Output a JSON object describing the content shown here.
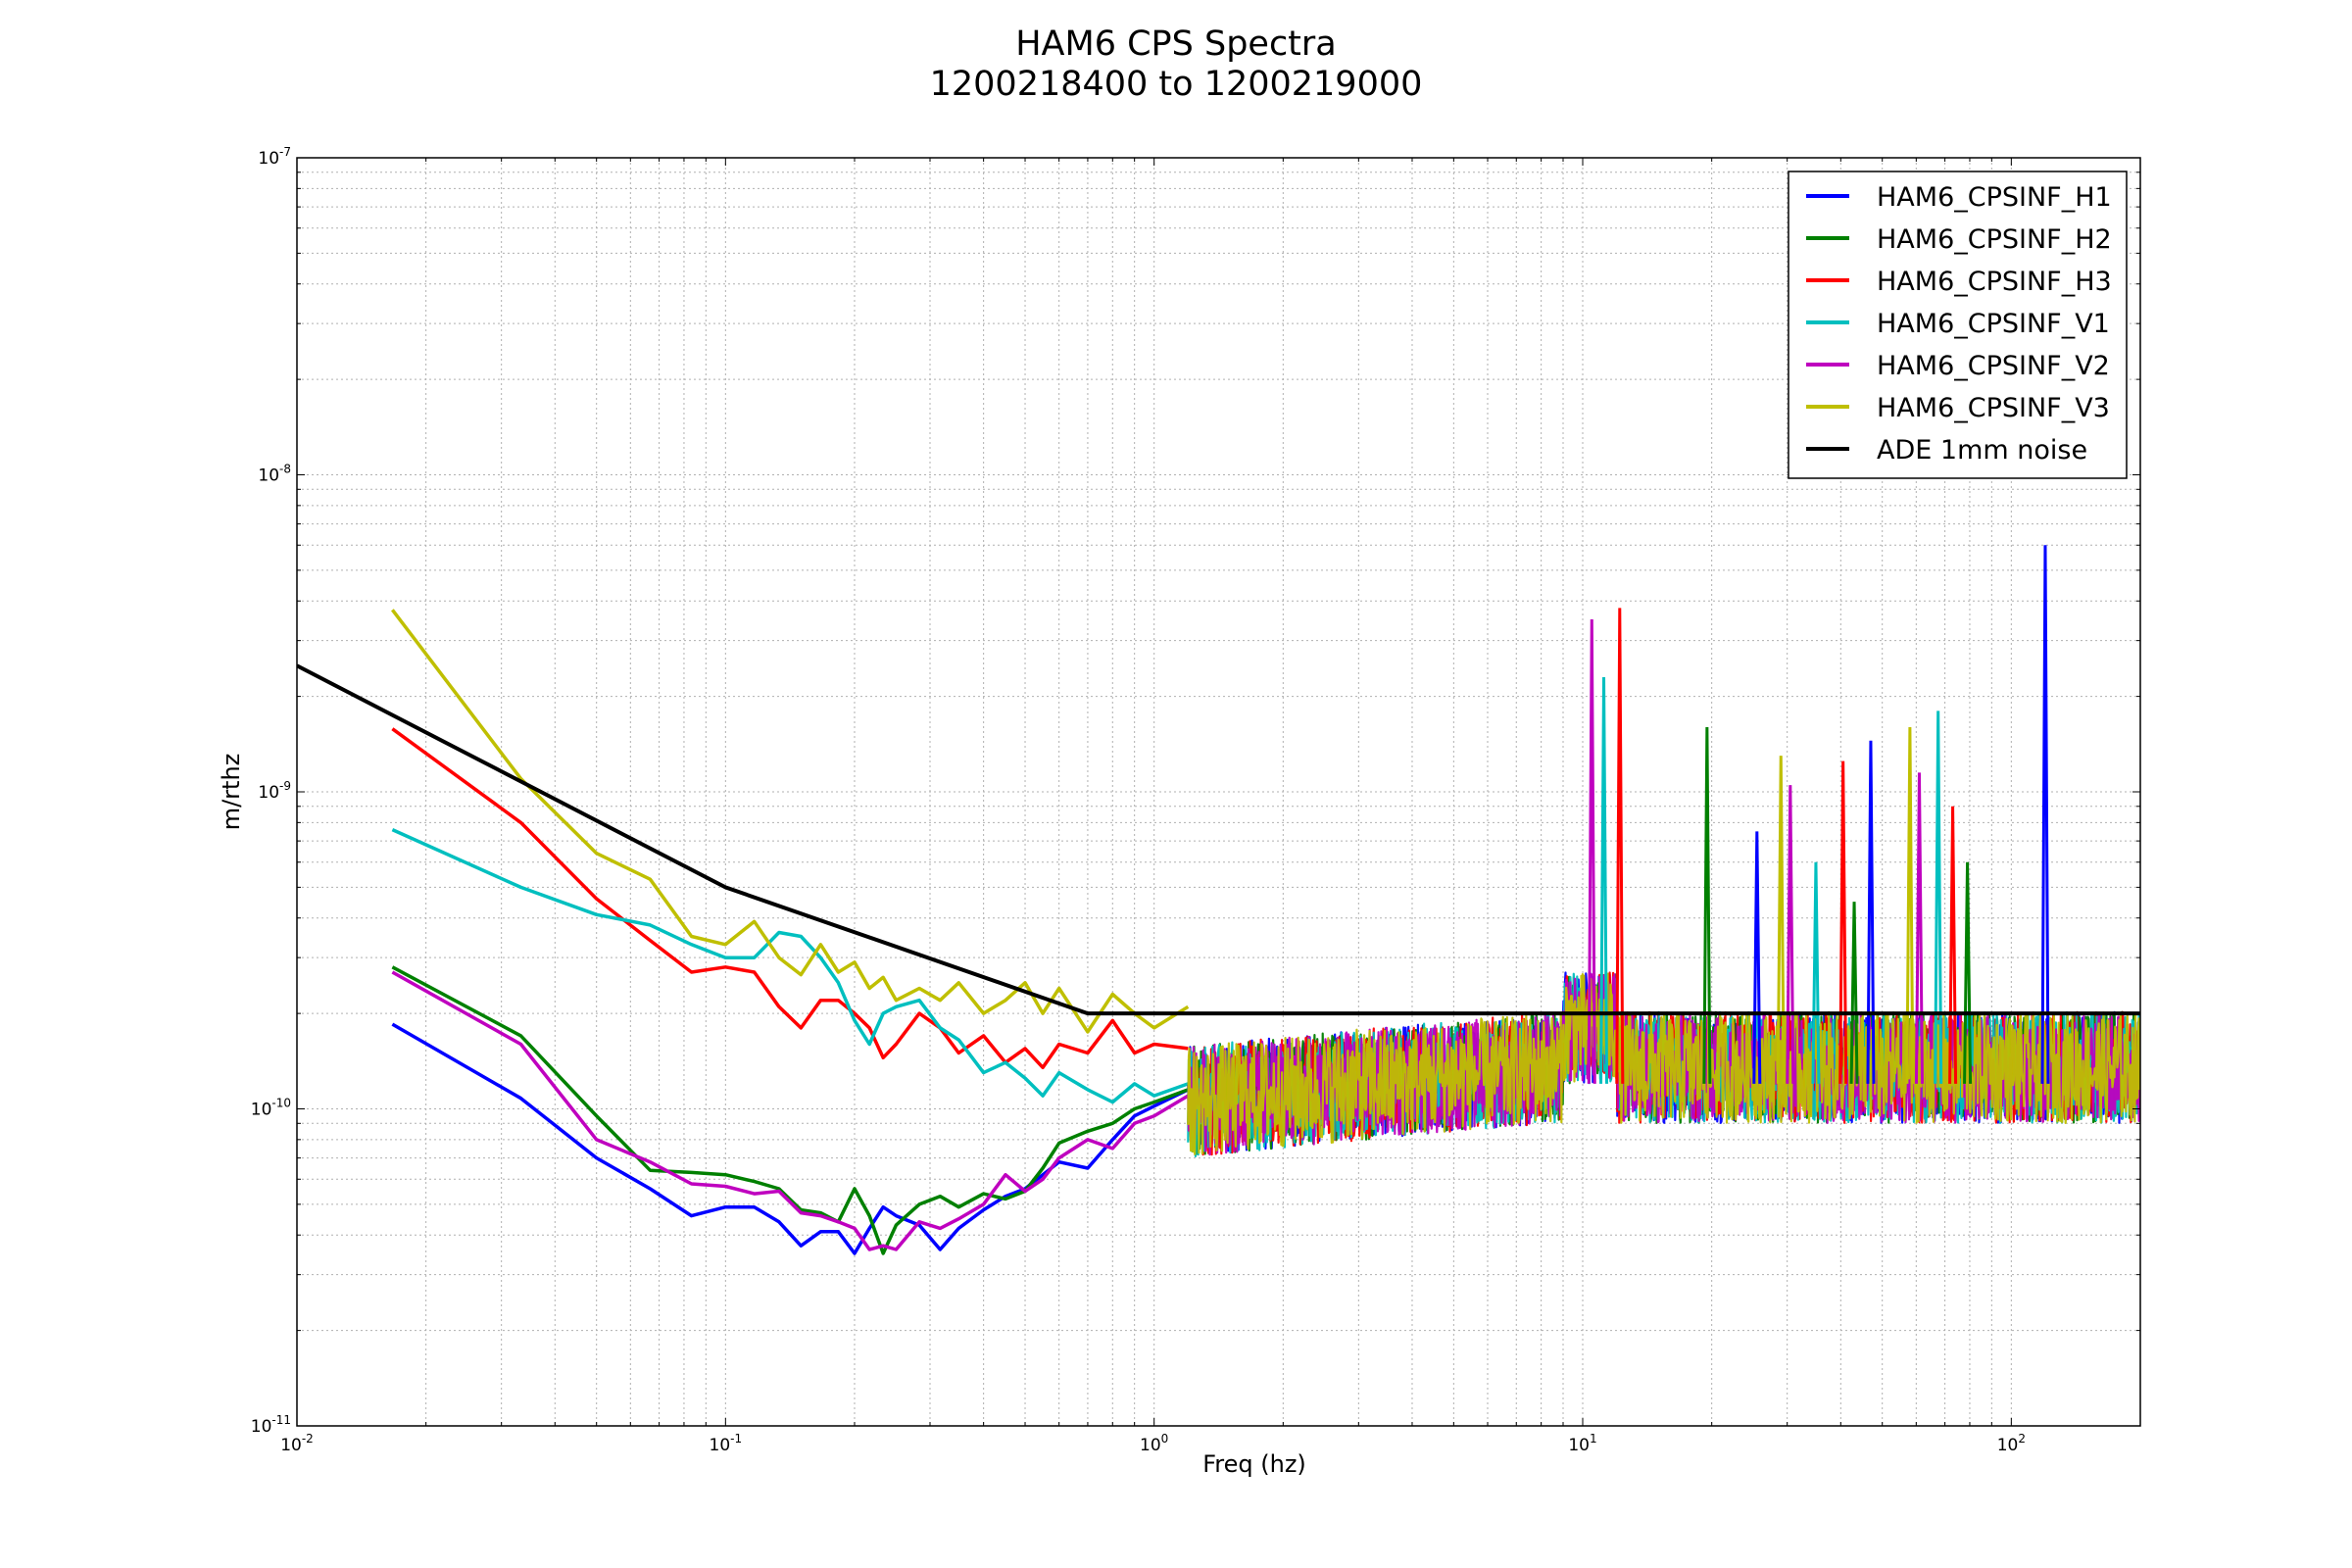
{
  "chart_data": {
    "type": "line",
    "title": "HAM6 CPS Spectra",
    "subtitle": "1200218400 to 1200219000",
    "xlabel": "Freq (hz)",
    "ylabel": "m/rthz",
    "xscale": "log",
    "yscale": "log",
    "xlim": [
      0.01,
      200
    ],
    "ylim": [
      1e-11,
      1e-07
    ],
    "x_ticks": [
      {
        "base": "10",
        "exp": "-2",
        "value": 0.01
      },
      {
        "base": "10",
        "exp": "-1",
        "value": 0.1
      },
      {
        "base": "10",
        "exp": "0",
        "value": 1
      },
      {
        "base": "10",
        "exp": "1",
        "value": 10
      },
      {
        "base": "10",
        "exp": "2",
        "value": 100
      }
    ],
    "y_ticks": [
      {
        "base": "10",
        "exp": "-11",
        "value": 1e-11
      },
      {
        "base": "10",
        "exp": "-10",
        "value": 1e-10
      },
      {
        "base": "10",
        "exp": "-9",
        "value": 1e-09
      },
      {
        "base": "10",
        "exp": "-8",
        "value": 1e-08
      },
      {
        "base": "10",
        "exp": "-7",
        "value": 1e-07
      }
    ],
    "grid": true,
    "legend_position": "top-right",
    "series": [
      {
        "name": "HAM6_CPSINF_H1",
        "color": "#0000ff",
        "x": [
          0.0167,
          0.0333,
          0.05,
          0.0667,
          0.0833,
          0.1,
          0.1167,
          0.1333,
          0.15,
          0.1667,
          0.1833,
          0.2,
          0.2167,
          0.2333,
          0.25,
          0.2833,
          0.3167,
          0.35,
          0.4,
          0.45,
          0.5,
          0.55,
          0.6,
          0.7,
          0.8,
          0.9,
          1.0,
          1.2
        ],
        "y": [
          1.85e-10,
          1.08e-10,
          7e-11,
          5.6e-11,
          4.6e-11,
          4.9e-11,
          4.9e-11,
          4.4e-11,
          3.7e-11,
          4.1e-11,
          4.1e-11,
          3.5e-11,
          4.2e-11,
          4.9e-11,
          4.6e-11,
          4.3e-11,
          3.6e-11,
          4.2e-11,
          4.8e-11,
          5.3e-11,
          5.6e-11,
          6.2e-11,
          6.8e-11,
          6.5e-11,
          8e-11,
          9.5e-11,
          1.02e-10,
          1.15e-10
        ]
      },
      {
        "name": "HAM6_CPSINF_H2",
        "color": "#008000",
        "x": [
          0.0167,
          0.0333,
          0.05,
          0.0667,
          0.0833,
          0.1,
          0.1167,
          0.1333,
          0.15,
          0.1667,
          0.1833,
          0.2,
          0.2167,
          0.2333,
          0.25,
          0.2833,
          0.3167,
          0.35,
          0.4,
          0.45,
          0.5,
          0.55,
          0.6,
          0.7,
          0.8,
          0.9,
          1.0,
          1.2
        ],
        "y": [
          2.8e-10,
          1.7e-10,
          9.5e-11,
          6.4e-11,
          6.3e-11,
          6.2e-11,
          5.9e-11,
          5.6e-11,
          4.8e-11,
          4.7e-11,
          4.4e-11,
          5.6e-11,
          4.6e-11,
          3.5e-11,
          4.3e-11,
          5e-11,
          5.3e-11,
          4.9e-11,
          5.4e-11,
          5.2e-11,
          5.5e-11,
          6.5e-11,
          7.8e-11,
          8.5e-11,
          9e-11,
          1e-10,
          1.05e-10,
          1.15e-10
        ]
      },
      {
        "name": "HAM6_CPSINF_H3",
        "color": "#ff0000",
        "x": [
          0.0167,
          0.0333,
          0.05,
          0.0667,
          0.0833,
          0.1,
          0.1167,
          0.1333,
          0.15,
          0.1667,
          0.1833,
          0.2,
          0.2167,
          0.2333,
          0.25,
          0.2833,
          0.3167,
          0.35,
          0.4,
          0.45,
          0.5,
          0.55,
          0.6,
          0.7,
          0.8,
          0.9,
          1.0,
          1.2
        ],
        "y": [
          1.58e-09,
          8e-10,
          4.6e-10,
          3.4e-10,
          2.7e-10,
          2.8e-10,
          2.7e-10,
          2.1e-10,
          1.8e-10,
          2.2e-10,
          2.2e-10,
          2e-10,
          1.8e-10,
          1.45e-10,
          1.6e-10,
          2e-10,
          1.8e-10,
          1.5e-10,
          1.7e-10,
          1.4e-10,
          1.55e-10,
          1.35e-10,
          1.6e-10,
          1.5e-10,
          1.9e-10,
          1.5e-10,
          1.6e-10,
          1.55e-10
        ]
      },
      {
        "name": "HAM6_CPSINF_V1",
        "color": "#00bfbf",
        "x": [
          0.0167,
          0.0333,
          0.05,
          0.0667,
          0.0833,
          0.1,
          0.1167,
          0.1333,
          0.15,
          0.1667,
          0.1833,
          0.2,
          0.2167,
          0.2333,
          0.25,
          0.2833,
          0.3167,
          0.35,
          0.4,
          0.45,
          0.5,
          0.55,
          0.6,
          0.7,
          0.8,
          0.9,
          1.0,
          1.2
        ],
        "y": [
          7.6e-10,
          5e-10,
          4.1e-10,
          3.8e-10,
          3.3e-10,
          3e-10,
          3e-10,
          3.6e-10,
          3.5e-10,
          3e-10,
          2.5e-10,
          1.9e-10,
          1.6e-10,
          2e-10,
          2.1e-10,
          2.2e-10,
          1.8e-10,
          1.65e-10,
          1.3e-10,
          1.4e-10,
          1.25e-10,
          1.1e-10,
          1.3e-10,
          1.15e-10,
          1.05e-10,
          1.2e-10,
          1.1e-10,
          1.2e-10
        ]
      },
      {
        "name": "HAM6_CPSINF_V2",
        "color": "#bf00bf",
        "x": [
          0.0167,
          0.0333,
          0.05,
          0.0667,
          0.0833,
          0.1,
          0.1167,
          0.1333,
          0.15,
          0.1667,
          0.1833,
          0.2,
          0.2167,
          0.2333,
          0.25,
          0.2833,
          0.3167,
          0.35,
          0.4,
          0.45,
          0.5,
          0.55,
          0.6,
          0.7,
          0.8,
          0.9,
          1.0,
          1.2
        ],
        "y": [
          2.7e-10,
          1.6e-10,
          8e-11,
          6.8e-11,
          5.8e-11,
          5.7e-11,
          5.4e-11,
          5.5e-11,
          4.7e-11,
          4.6e-11,
          4.4e-11,
          4.2e-11,
          3.6e-11,
          3.7e-11,
          3.6e-11,
          4.4e-11,
          4.2e-11,
          4.5e-11,
          5e-11,
          6.2e-11,
          5.5e-11,
          6e-11,
          7e-11,
          8e-11,
          7.5e-11,
          9e-11,
          9.5e-11,
          1.1e-10
        ]
      },
      {
        "name": "HAM6_CPSINF_V3",
        "color": "#bfbf00",
        "x": [
          0.0167,
          0.0333,
          0.05,
          0.0667,
          0.0833,
          0.1,
          0.1167,
          0.1333,
          0.15,
          0.1667,
          0.1833,
          0.2,
          0.2167,
          0.2333,
          0.25,
          0.2833,
          0.3167,
          0.35,
          0.4,
          0.45,
          0.5,
          0.55,
          0.6,
          0.7,
          0.8,
          0.9,
          1.0,
          1.2
        ],
        "y": [
          3.75e-09,
          1.1e-09,
          6.4e-10,
          5.3e-10,
          3.5e-10,
          3.3e-10,
          3.9e-10,
          3e-10,
          2.65e-10,
          3.3e-10,
          2.7e-10,
          2.9e-10,
          2.4e-10,
          2.6e-10,
          2.2e-10,
          2.4e-10,
          2.2e-10,
          2.5e-10,
          2e-10,
          2.2e-10,
          2.5e-10,
          2e-10,
          2.4e-10,
          1.75e-10,
          2.3e-10,
          2e-10,
          1.8e-10,
          2.1e-10
        ]
      },
      {
        "name": "ADE 1mm noise",
        "color": "#000000",
        "x": [
          0.01,
          0.1,
          0.7,
          200
        ],
        "y": [
          2.5e-09,
          5e-10,
          2e-10,
          2e-10
        ]
      }
    ],
    "peaks": [
      {
        "x": 10.5,
        "y": 3.5e-09
      },
      {
        "x": 11.2,
        "y": 2.3e-09
      },
      {
        "x": 12.2,
        "y": 3.8e-09
      },
      {
        "x": 19.5,
        "y": 1.6e-09
      },
      {
        "x": 25.5,
        "y": 7.5e-10
      },
      {
        "x": 29.0,
        "y": 1.3e-09
      },
      {
        "x": 30.5,
        "y": 1.05e-09
      },
      {
        "x": 35.0,
        "y": 6e-10
      },
      {
        "x": 40.5,
        "y": 1.25e-09
      },
      {
        "x": 43.0,
        "y": 4.5e-10
      },
      {
        "x": 47.0,
        "y": 1.45e-09
      },
      {
        "x": 58.0,
        "y": 1.6e-09
      },
      {
        "x": 61.0,
        "y": 1.15e-09
      },
      {
        "x": 67.5,
        "y": 1.8e-09
      },
      {
        "x": 73.0,
        "y": 9e-10
      },
      {
        "x": 79.0,
        "y": 6e-10
      },
      {
        "x": 120.0,
        "y": 6e-09
      }
    ]
  }
}
